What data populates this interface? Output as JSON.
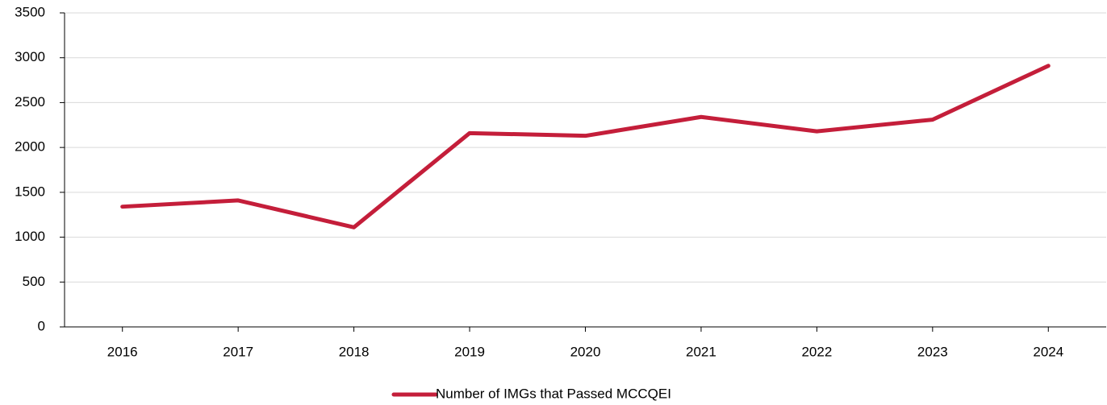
{
  "chart_data": {
    "type": "line",
    "categories": [
      "2016",
      "2017",
      "2018",
      "2019",
      "2020",
      "2021",
      "2022",
      "2023",
      "2024"
    ],
    "series": [
      {
        "name": "Number of IMGs that Passed MCCQEI",
        "color": "#c41e3a",
        "values": [
          1340,
          1410,
          1110,
          2160,
          2130,
          2340,
          2180,
          2310,
          2910
        ]
      }
    ],
    "ylim": [
      0,
      3500
    ],
    "yticks": [
      0,
      500,
      1000,
      1500,
      2000,
      2500,
      3000,
      3500
    ],
    "grid": true,
    "legend": "bottom"
  }
}
